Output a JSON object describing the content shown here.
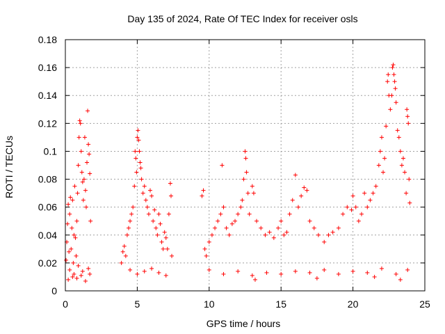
{
  "chart_data": {
    "type": "scatter",
    "title": "Day 135 of 2024, Rate Of TEC Index for receiver osls",
    "xlabel": "GPS time / hours",
    "ylabel": "ROTI / TECUs",
    "xlim": [
      0,
      25
    ],
    "ylim": [
      0,
      0.18
    ],
    "xticks": [
      0,
      5,
      10,
      15,
      20,
      25
    ],
    "yticks": [
      0,
      0.02,
      0.04,
      0.06,
      0.08,
      0.1,
      0.12,
      0.14,
      0.16,
      0.18
    ],
    "grid": true,
    "marker": "plus",
    "color": "#ff0000",
    "series": [
      {
        "values": [
          [
            0.05,
            0.022
          ],
          [
            0.1,
            0.035
          ],
          [
            0.15,
            0.048
          ],
          [
            0.2,
            0.062
          ],
          [
            0.25,
            0.028
          ],
          [
            0.3,
            0.055
          ],
          [
            0.35,
            0.067
          ],
          [
            0.4,
            0.03
          ],
          [
            0.45,
            0.045
          ],
          [
            0.5,
            0.065
          ],
          [
            0.55,
            0.02
          ],
          [
            0.6,
            0.04
          ],
          [
            0.65,
            0.075
          ],
          [
            0.7,
            0.038
          ],
          [
            0.75,
            0.025
          ],
          [
            0.8,
            0.05
          ],
          [
            0.85,
            0.07
          ],
          [
            0.9,
            0.09
          ],
          [
            0.95,
            0.11
          ],
          [
            1.0,
            0.122
          ],
          [
            1.05,
            0.12
          ],
          [
            1.1,
            0.1
          ],
          [
            1.15,
            0.085
          ],
          [
            1.2,
            0.078
          ],
          [
            1.25,
            0.065
          ],
          [
            1.3,
            0.08
          ],
          [
            1.35,
            0.11
          ],
          [
            1.4,
            0.072
          ],
          [
            1.45,
            0.06
          ],
          [
            1.5,
            0.092
          ],
          [
            1.55,
            0.129
          ],
          [
            1.6,
            0.105
          ],
          [
            1.65,
            0.098
          ],
          [
            1.7,
            0.084
          ],
          [
            1.75,
            0.05
          ],
          [
            0.3,
            0.015
          ],
          [
            0.6,
            0.012
          ],
          [
            0.9,
            0.018
          ],
          [
            1.2,
            0.014
          ],
          [
            1.6,
            0.016
          ],
          [
            0.2,
            0.008
          ],
          [
            0.5,
            0.01
          ],
          [
            0.8,
            0.009
          ],
          [
            1.1,
            0.011
          ],
          [
            1.4,
            0.007
          ],
          [
            1.7,
            0.012
          ],
          [
            3.9,
            0.02
          ],
          [
            4.0,
            0.028
          ],
          [
            4.1,
            0.032
          ],
          [
            4.2,
            0.025
          ],
          [
            4.3,
            0.04
          ],
          [
            4.4,
            0.045
          ],
          [
            4.5,
            0.05
          ],
          [
            4.6,
            0.055
          ],
          [
            4.7,
            0.06
          ],
          [
            4.8,
            0.075
          ],
          [
            4.85,
            0.1
          ],
          [
            4.9,
            0.095
          ],
          [
            4.95,
            0.085
          ],
          [
            5.0,
            0.11
          ],
          [
            5.05,
            0.115
          ],
          [
            5.1,
            0.108
          ],
          [
            5.15,
            0.1
          ],
          [
            5.2,
            0.092
          ],
          [
            5.25,
            0.088
          ],
          [
            5.3,
            0.08
          ],
          [
            5.4,
            0.07
          ],
          [
            5.5,
            0.075
          ],
          [
            5.6,
            0.065
          ],
          [
            5.7,
            0.06
          ],
          [
            5.8,
            0.055
          ],
          [
            5.9,
            0.072
          ],
          [
            6.0,
            0.068
          ],
          [
            6.1,
            0.05
          ],
          [
            6.2,
            0.058
          ],
          [
            6.3,
            0.045
          ],
          [
            6.4,
            0.04
          ],
          [
            6.5,
            0.055
          ],
          [
            6.6,
            0.048
          ],
          [
            6.7,
            0.035
          ],
          [
            6.8,
            0.03
          ],
          [
            6.9,
            0.042
          ],
          [
            7.0,
            0.038
          ],
          [
            7.1,
            0.03
          ],
          [
            7.2,
            0.055
          ],
          [
            7.3,
            0.077
          ],
          [
            7.35,
            0.068
          ],
          [
            7.4,
            0.025
          ],
          [
            4.5,
            0.015
          ],
          [
            5.0,
            0.012
          ],
          [
            5.5,
            0.014
          ],
          [
            6.0,
            0.016
          ],
          [
            6.5,
            0.013
          ],
          [
            7.0,
            0.011
          ],
          [
            9.5,
            0.068
          ],
          [
            9.6,
            0.072
          ],
          [
            9.7,
            0.03
          ],
          [
            9.8,
            0.025
          ],
          [
            10.0,
            0.035
          ],
          [
            10.2,
            0.04
          ],
          [
            10.4,
            0.045
          ],
          [
            10.6,
            0.05
          ],
          [
            10.8,
            0.055
          ],
          [
            10.9,
            0.09
          ],
          [
            11.0,
            0.06
          ],
          [
            11.2,
            0.045
          ],
          [
            11.4,
            0.04
          ],
          [
            11.6,
            0.048
          ],
          [
            11.8,
            0.05
          ],
          [
            12.0,
            0.055
          ],
          [
            12.2,
            0.06
          ],
          [
            12.3,
            0.065
          ],
          [
            12.4,
            0.08
          ],
          [
            12.5,
            0.1
          ],
          [
            12.55,
            0.095
          ],
          [
            12.6,
            0.085
          ],
          [
            12.7,
            0.07
          ],
          [
            12.8,
            0.055
          ],
          [
            13.0,
            0.075
          ],
          [
            13.1,
            0.07
          ],
          [
            13.3,
            0.05
          ],
          [
            13.6,
            0.045
          ],
          [
            13.9,
            0.04
          ],
          [
            14.2,
            0.042
          ],
          [
            14.5,
            0.038
          ],
          [
            14.8,
            0.045
          ],
          [
            15.0,
            0.05
          ],
          [
            15.2,
            0.04
          ],
          [
            15.4,
            0.042
          ],
          [
            15.6,
            0.055
          ],
          [
            15.8,
            0.065
          ],
          [
            16.0,
            0.083
          ],
          [
            16.2,
            0.06
          ],
          [
            16.4,
            0.068
          ],
          [
            16.6,
            0.074
          ],
          [
            16.8,
            0.072
          ],
          [
            17.0,
            0.05
          ],
          [
            17.3,
            0.045
          ],
          [
            17.6,
            0.04
          ],
          [
            18.0,
            0.035
          ],
          [
            18.3,
            0.04
          ],
          [
            18.6,
            0.042
          ],
          [
            19.0,
            0.045
          ],
          [
            19.3,
            0.055
          ],
          [
            19.6,
            0.06
          ],
          [
            19.9,
            0.058
          ],
          [
            20.0,
            0.068
          ],
          [
            20.2,
            0.06
          ],
          [
            20.4,
            0.05
          ],
          [
            20.6,
            0.055
          ],
          [
            20.8,
            0.07
          ],
          [
            21.0,
            0.06
          ],
          [
            21.2,
            0.065
          ],
          [
            21.4,
            0.07
          ],
          [
            21.6,
            0.075
          ],
          [
            21.8,
            0.09
          ],
          [
            21.9,
            0.1
          ],
          [
            22.0,
            0.11
          ],
          [
            22.1,
            0.085
          ],
          [
            22.2,
            0.095
          ],
          [
            22.3,
            0.118
          ],
          [
            22.4,
            0.15
          ],
          [
            22.45,
            0.155
          ],
          [
            22.5,
            0.14
          ],
          [
            22.6,
            0.13
          ],
          [
            22.7,
            0.14
          ],
          [
            22.75,
            0.16
          ],
          [
            22.8,
            0.162
          ],
          [
            22.85,
            0.155
          ],
          [
            22.9,
            0.15
          ],
          [
            22.95,
            0.145
          ],
          [
            23.0,
            0.135
          ],
          [
            23.1,
            0.115
          ],
          [
            23.2,
            0.11
          ],
          [
            23.3,
            0.1
          ],
          [
            23.4,
            0.09
          ],
          [
            23.5,
            0.095
          ],
          [
            23.6,
            0.085
          ],
          [
            23.7,
            0.07
          ],
          [
            23.75,
            0.13
          ],
          [
            23.8,
            0.125
          ],
          [
            23.85,
            0.12
          ],
          [
            23.9,
            0.08
          ],
          [
            23.95,
            0.063
          ],
          [
            10.0,
            0.015
          ],
          [
            11.0,
            0.012
          ],
          [
            12.0,
            0.014
          ],
          [
            13.0,
            0.011
          ],
          [
            14.0,
            0.013
          ],
          [
            15.0,
            0.012
          ],
          [
            16.0,
            0.014
          ],
          [
            17.0,
            0.013
          ],
          [
            18.0,
            0.015
          ],
          [
            19.0,
            0.012
          ],
          [
            20.0,
            0.014
          ],
          [
            21.0,
            0.013
          ],
          [
            22.0,
            0.016
          ],
          [
            23.0,
            0.012
          ],
          [
            23.8,
            0.015
          ],
          [
            13.2,
            0.008
          ],
          [
            17.5,
            0.009
          ],
          [
            21.5,
            0.01
          ],
          [
            23.3,
            0.008
          ]
        ]
      }
    ]
  }
}
